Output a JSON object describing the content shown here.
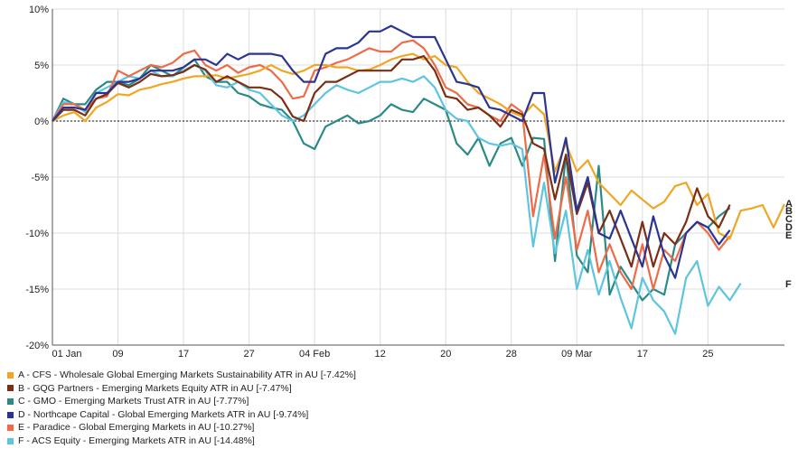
{
  "chart_data": {
    "type": "line",
    "title": "",
    "xlabel": "",
    "ylabel": "",
    "ylim": [
      -20,
      10
    ],
    "y_ticks": [
      10,
      5,
      0,
      -5,
      -10,
      -15,
      -20
    ],
    "y_tick_labels": [
      "10%",
      "5%",
      "0%",
      "-5%",
      "-10%",
      "-15%",
      "-20%"
    ],
    "x_tick_labels": [
      {
        "label": "01 Jan",
        "index": 0
      },
      {
        "label": "09",
        "index": 6
      },
      {
        "label": "17",
        "index": 12
      },
      {
        "label": "27",
        "index": 18
      },
      {
        "label": "04 Feb",
        "index": 24
      },
      {
        "label": "12",
        "index": 30
      },
      {
        "label": "20",
        "index": 36
      },
      {
        "label": "28",
        "index": 42
      },
      {
        "label": "09 Mar",
        "index": 48
      },
      {
        "label": "17",
        "index": 54
      },
      {
        "label": "25",
        "index": 60
      }
    ],
    "grid": true,
    "zero_line": "dotted",
    "legend_position": "bottom-left",
    "series": [
      {
        "key": "A",
        "name": "A - CFS - Wholesale Global Emerging Markets Sustainability ATR in AU [-7.42%]",
        "color": "#f0a623",
        "values": [
          0,
          0.5,
          0.8,
          0,
          1.2,
          1.7,
          2.4,
          2.3,
          2.8,
          3,
          3.3,
          3.5,
          3.8,
          4,
          4,
          4.1,
          3.8,
          4,
          4.2,
          4.5,
          5,
          4.5,
          4.2,
          4.5,
          5,
          5,
          4.8,
          4.8,
          4.5,
          4.6,
          5,
          5.5,
          5.8,
          6,
          5.5,
          5.8,
          5,
          4.8,
          3.5,
          2.5,
          2,
          1.5,
          0.8,
          0.4,
          1.5,
          0.6,
          -4.5,
          -2,
          -4.5,
          -3.5,
          -5.5,
          -6.5,
          -7.5,
          -6.2,
          -7,
          -7.8,
          -7.2,
          -5.8,
          -5.5,
          -7.5,
          -6.5,
          -10,
          -10.5,
          -8,
          -7.8,
          -7.5,
          -9.5,
          -7.42
        ]
      },
      {
        "key": "B",
        "name": "B - GQG Partners - Emerging Markets Equity ATR in AU [-7.47%]",
        "color": "#7a2e14",
        "values": [
          0,
          1,
          1,
          0.5,
          2,
          2.4,
          3.4,
          3,
          3.5,
          4.2,
          4,
          4.1,
          4.4,
          5,
          4.6,
          3.5,
          4,
          3.5,
          3,
          3,
          2.8,
          2,
          0.4,
          0,
          2.5,
          3.5,
          3.5,
          4,
          4.5,
          4.5,
          4.5,
          4.5,
          5.5,
          5.5,
          5.8,
          4.5,
          2.2,
          2,
          1,
          1.2,
          0.5,
          -0.5,
          1,
          0.6,
          -2,
          -2.5,
          -7,
          -3,
          -8.3,
          -5.5,
          -10,
          -8,
          -10.5,
          -13,
          -9,
          -13,
          -10,
          -11,
          -9,
          -6,
          -8.5,
          -9.5,
          -7.47
        ]
      },
      {
        "key": "C",
        "name": "C - GMO - Emerging Markets Trust ATR in AU [-7.77%]",
        "color": "#2a8a86",
        "values": [
          0,
          2,
          1.5,
          1.5,
          2.8,
          3.5,
          3.5,
          3.2,
          3.8,
          5,
          4.5,
          4,
          4.8,
          5.5,
          4,
          3.5,
          3.5,
          2.5,
          2.2,
          1.5,
          1.2,
          1,
          0,
          -2,
          -2.5,
          -0.5,
          0,
          0.5,
          -0.2,
          0,
          0.5,
          1.5,
          1,
          0.8,
          2,
          1.5,
          1,
          -2,
          -3,
          -1.5,
          -4,
          -2,
          -1.5,
          -4,
          -1.5,
          -1.6,
          -12.5,
          -3,
          -12,
          -13.5,
          -4,
          -15.5,
          -13,
          -14.5,
          -16,
          -15,
          -15.5,
          -11,
          -10,
          -9,
          -9.5,
          -8.5,
          -7.77
        ]
      },
      {
        "key": "D",
        "name": "D - Northcape Capital - Global Emerging Markets ATR in AU [-9.74%]",
        "color": "#2b3591",
        "values": [
          0,
          1.2,
          1.2,
          1,
          2.5,
          2.5,
          3.5,
          3.5,
          3.8,
          4.5,
          4.5,
          4.5,
          4.8,
          5.5,
          5.5,
          5,
          6,
          5.5,
          6,
          6,
          6,
          5.8,
          4.5,
          3.5,
          3.5,
          6,
          6.5,
          6.5,
          7,
          8,
          8,
          8.5,
          8,
          7.5,
          7.5,
          7.5,
          5.5,
          3.5,
          3.3,
          3,
          1.2,
          1,
          0.5,
          0,
          2.5,
          2.5,
          -5.5,
          -1.5,
          -8,
          -5,
          -10,
          -10.5,
          -8,
          -10.5,
          -13,
          -8.5,
          -12,
          -14,
          -10,
          -9,
          -9.5,
          -11,
          -9.74
        ]
      },
      {
        "key": "E",
        "name": "E - Paradice - Global Emerging Markets in AU [-10.27%]",
        "color": "#ee6b47",
        "values": [
          0,
          1.5,
          1.5,
          1,
          2,
          2.2,
          4.5,
          4,
          4.5,
          5,
          4.8,
          5.2,
          6,
          6.3,
          5,
          4.5,
          5,
          4.3,
          4.8,
          5,
          4.5,
          3.5,
          2,
          2.2,
          4.5,
          4.8,
          5.2,
          5.5,
          6,
          6.5,
          6.2,
          6.2,
          7,
          7.2,
          6.5,
          5,
          3,
          2.5,
          1.5,
          1.2,
          0.5,
          0,
          1.5,
          0.8,
          -8.5,
          -3,
          -10.5,
          -5,
          -11.5,
          -8,
          -13.5,
          -11,
          -13.5,
          -15,
          -11,
          -15,
          -11.5,
          -12.5,
          -10,
          -9,
          -10,
          -11.5,
          -10.27
        ]
      },
      {
        "key": "F",
        "name": "F - ACS Equity - Emerging Markets ATR in AU [-14.48%]",
        "color": "#5ec4df",
        "values": [
          0,
          1.7,
          1.5,
          0.8,
          2.5,
          3,
          3.5,
          4,
          3.8,
          4.5,
          4,
          4,
          4.5,
          5,
          4.5,
          3.2,
          3,
          3.5,
          2.8,
          2.5,
          1.5,
          0.5,
          0,
          0.5,
          1.5,
          2.5,
          3.2,
          2.8,
          2.5,
          3,
          3.5,
          3.5,
          3.8,
          3.5,
          4,
          3,
          1,
          0.2,
          0,
          -1.5,
          -2,
          -2.2,
          -2,
          -2.5,
          -11.2,
          -5.5,
          -11.8,
          -8,
          -15,
          -11.5,
          -15.5,
          -12.5,
          -15.8,
          -18.5,
          -14,
          -16,
          -17,
          -19,
          -14,
          -12.5,
          -16.5,
          -14.8,
          -16,
          -14.48
        ]
      }
    ]
  }
}
